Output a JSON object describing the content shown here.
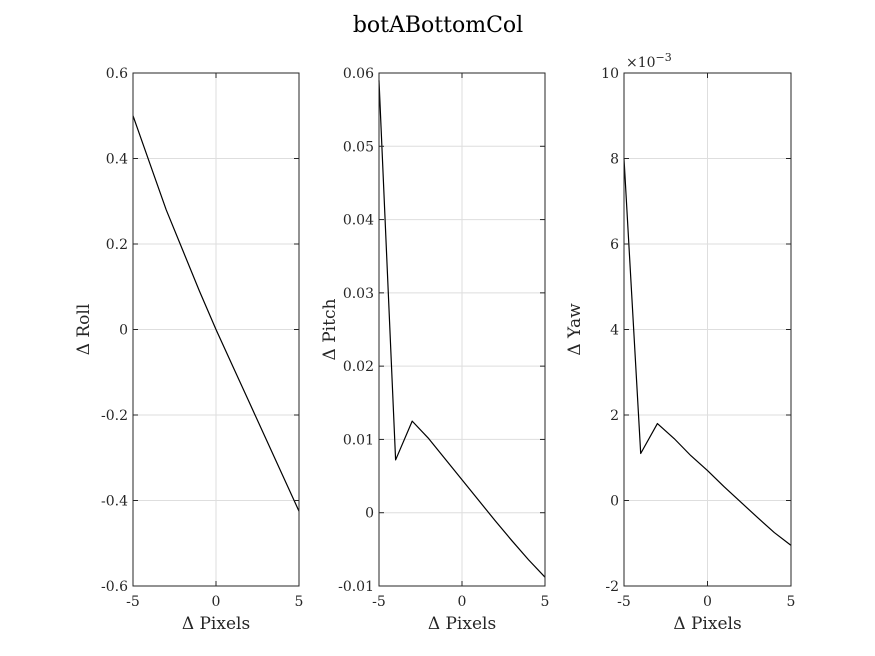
{
  "title": "botABottomCol",
  "colors": {
    "line": "#000000",
    "axis": "#262626",
    "grid": "#dedede"
  },
  "chart_data": [
    {
      "type": "line",
      "xlabel": "Δ Pixels",
      "ylabel": "Δ Roll",
      "xlim": [
        -5,
        5
      ],
      "ylim": [
        -0.6,
        0.6
      ],
      "grid": true,
      "x_ticks": [
        -5,
        0,
        5
      ],
      "x_tick_labels": [
        "-5",
        "0",
        "5"
      ],
      "y_ticks": [
        -0.6,
        -0.4,
        -0.2,
        0,
        0.2,
        0.4,
        0.6
      ],
      "y_tick_labels": [
        "-0.6",
        "-0.4",
        "-0.2",
        "0",
        "0.2",
        "0.4",
        "0.6"
      ],
      "exponent_label": "",
      "series": [
        {
          "x": [
            -5,
            -4,
            -3,
            -2,
            -1,
            0,
            1,
            2,
            3,
            4,
            5
          ],
          "y": [
            0.5,
            0.39,
            0.28,
            0.185,
            0.09,
            0.0,
            -0.085,
            -0.17,
            -0.255,
            -0.34,
            -0.425
          ]
        }
      ]
    },
    {
      "type": "line",
      "xlabel": "Δ Pixels",
      "ylabel": "Δ Pitch",
      "xlim": [
        -5,
        5
      ],
      "ylim": [
        -0.01,
        0.06
      ],
      "grid": true,
      "x_ticks": [
        -5,
        0,
        5
      ],
      "x_tick_labels": [
        "-5",
        "0",
        "5"
      ],
      "y_ticks": [
        -0.01,
        0,
        0.01,
        0.02,
        0.03,
        0.04,
        0.05,
        0.06
      ],
      "y_tick_labels": [
        "-0.01",
        "0",
        "0.01",
        "0.02",
        "0.03",
        "0.04",
        "0.05",
        "0.06"
      ],
      "exponent_label": "",
      "series": [
        {
          "x": [
            -5,
            -4,
            -3,
            -2,
            -1,
            0,
            1,
            2,
            3,
            4,
            5
          ],
          "y": [
            0.059,
            0.0072,
            0.0125,
            0.0101,
            0.0073,
            0.0045,
            0.0017,
            -0.0011,
            -0.0038,
            -0.0064,
            -0.0088
          ]
        }
      ]
    },
    {
      "type": "line",
      "xlabel": "Δ Pixels",
      "ylabel": "Δ Yaw",
      "xlim": [
        -5,
        5
      ],
      "ylim": [
        -2,
        10
      ],
      "grid": true,
      "x_ticks": [
        -5,
        0,
        5
      ],
      "x_tick_labels": [
        "-5",
        "0",
        "5"
      ],
      "y_ticks": [
        -2,
        0,
        2,
        4,
        6,
        8,
        10
      ],
      "y_tick_labels": [
        "-2",
        "0",
        "2",
        "4",
        "6",
        "8",
        "10"
      ],
      "exponent_label": "×10",
      "exponent_power": "−3",
      "series": [
        {
          "x": [
            -5,
            -4,
            -3,
            -2,
            -1,
            0,
            1,
            2,
            3,
            4,
            5
          ],
          "y": [
            8.0,
            1.1,
            1.8,
            1.45,
            1.05,
            0.7,
            0.32,
            -0.04,
            -0.4,
            -0.75,
            -1.05
          ]
        }
      ]
    }
  ]
}
